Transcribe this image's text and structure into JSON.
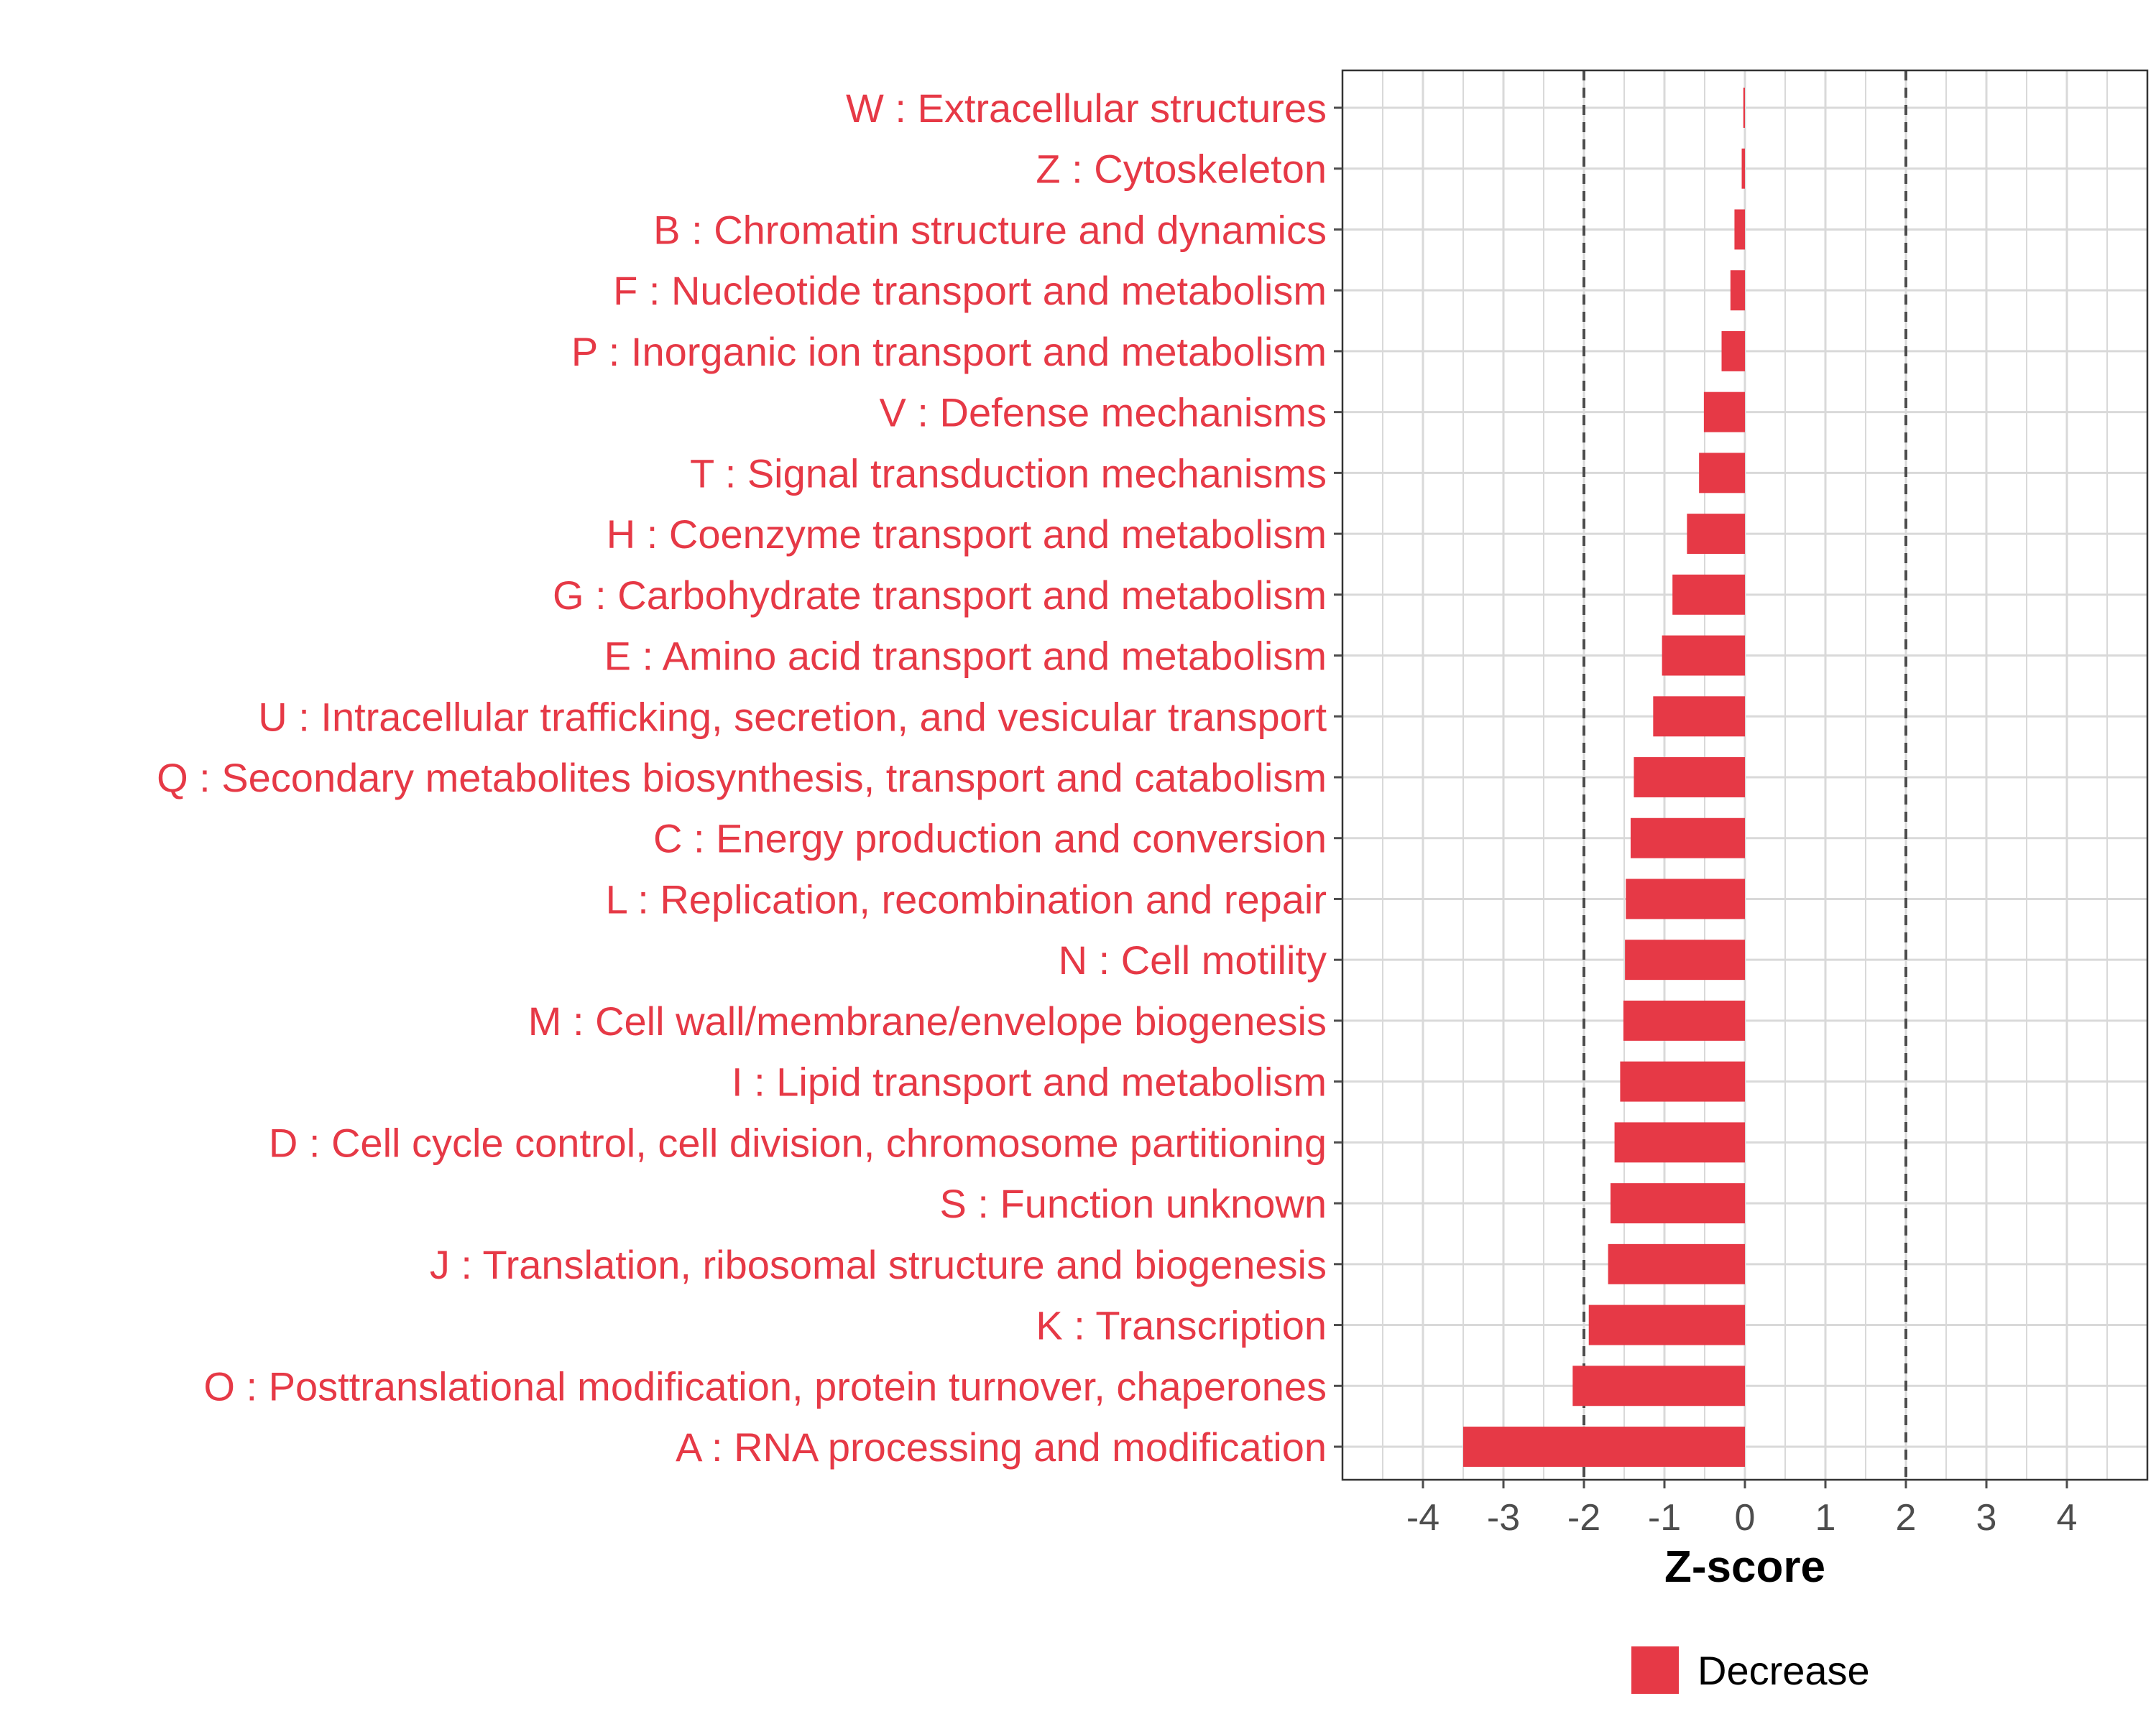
{
  "chart_data": {
    "type": "bar",
    "orientation": "horizontal",
    "title": "",
    "xlabel": "Z-score",
    "ylabel": "",
    "xlim": [
      -5,
      5
    ],
    "xticks": [
      -4,
      -3,
      -2,
      -1,
      0,
      1,
      2,
      3,
      4
    ],
    "reference_lines": [
      -2,
      2
    ],
    "grid": true,
    "legend_position": "bottom",
    "categories": [
      "W : Extracellular structures",
      "Z : Cytoskeleton",
      "B : Chromatin structure and dynamics",
      "F : Nucleotide transport and metabolism",
      "P : Inorganic ion transport and metabolism",
      "V : Defense mechanisms",
      "T : Signal transduction mechanisms",
      "H : Coenzyme transport and metabolism",
      "G : Carbohydrate transport and metabolism",
      "E : Amino acid transport and metabolism",
      "U : Intracellular trafficking, secretion, and vesicular transport",
      "Q : Secondary metabolites biosynthesis, transport and catabolism",
      "C : Energy production and conversion",
      "L : Replication, recombination and repair",
      "N : Cell motility",
      "M : Cell wall/membrane/envelope biogenesis",
      "I : Lipid transport and metabolism",
      "D : Cell cycle control, cell division, chromosome partitioning",
      "S : Function unknown",
      "J : Translation, ribosomal structure and biogenesis",
      "K : Transcription",
      "O : Posttranslational modification, protein turnover, chaperones",
      "A : RNA processing and modification"
    ],
    "series": [
      {
        "name": "Decrease",
        "color": "#e63946",
        "values": [
          -0.02,
          -0.04,
          -0.13,
          -0.18,
          -0.29,
          -0.51,
          -0.57,
          -0.72,
          -0.9,
          -1.03,
          -1.14,
          -1.38,
          -1.42,
          -1.48,
          -1.49,
          -1.51,
          -1.55,
          -1.62,
          -1.67,
          -1.7,
          -1.94,
          -2.14,
          -3.5
        ]
      }
    ],
    "legend": {
      "items": [
        "Decrease"
      ]
    }
  },
  "colors": {
    "bar": "#e63946",
    "label": "#e63946",
    "grid": "#d9d9d9",
    "axis": "#4d4d4d",
    "reference_line": "#4d4d4d"
  }
}
